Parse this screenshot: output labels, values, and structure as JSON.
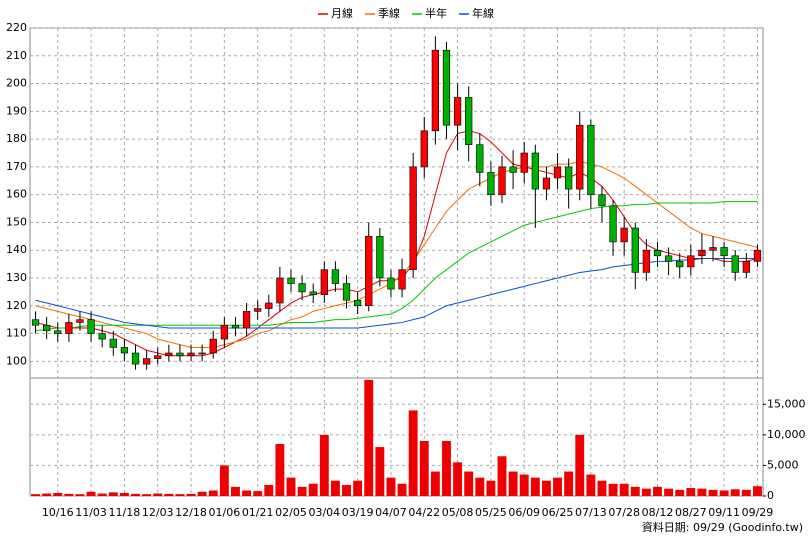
{
  "chart_data": {
    "type": "candlestick",
    "legend_position": "top",
    "grid": true,
    "up_color": "#ff0000",
    "down_color": "#00b000",
    "volume_color": "#ee0000",
    "footnote": "資料日期: 09/29 (Goodinfo.tw)",
    "categories": [
      null,
      null,
      "10/16",
      null,
      null,
      "11/03",
      null,
      null,
      "11/18",
      null,
      null,
      "12/03",
      null,
      null,
      "12/18",
      null,
      null,
      "01/06",
      null,
      null,
      "01/21",
      null,
      null,
      "02/05",
      null,
      null,
      "03/04",
      null,
      null,
      "03/19",
      null,
      null,
      "04/07",
      null,
      null,
      "04/22",
      null,
      null,
      "05/08",
      null,
      null,
      "05/25",
      null,
      null,
      "06/09",
      null,
      null,
      "06/25",
      null,
      null,
      "07/13",
      null,
      null,
      "07/28",
      null,
      null,
      "08/12",
      null,
      null,
      "08/27",
      null,
      null,
      "09/11",
      null,
      null,
      "09/29"
    ],
    "open": [
      115,
      113,
      111,
      110,
      114,
      115,
      110,
      108,
      105,
      103,
      99,
      101,
      102,
      103,
      102,
      103,
      103,
      108,
      113,
      112,
      118,
      119,
      121,
      130,
      128,
      125,
      124,
      133,
      128,
      122,
      120,
      145,
      130,
      126,
      133,
      170,
      183,
      212,
      185,
      195,
      178,
      168,
      160,
      170,
      168,
      175,
      162,
      166,
      170,
      162,
      185,
      160,
      156,
      143,
      148,
      132,
      140,
      138,
      136,
      134,
      138,
      140,
      141,
      138,
      132,
      136
    ],
    "high": [
      118,
      116,
      114,
      117,
      118,
      118,
      113,
      111,
      108,
      106,
      104,
      105,
      106,
      106,
      106,
      106,
      111,
      116,
      116,
      121,
      122,
      124,
      134,
      133,
      131,
      128,
      136,
      136,
      131,
      125,
      150,
      148,
      133,
      137,
      175,
      188,
      217,
      215,
      200,
      199,
      182,
      172,
      174,
      176,
      179,
      178,
      170,
      175,
      173,
      190,
      187,
      163,
      158,
      152,
      150,
      144,
      143,
      141,
      139,
      142,
      146,
      145,
      143,
      140,
      139,
      142
    ],
    "low": [
      110,
      108,
      107,
      107,
      111,
      107,
      105,
      102,
      100,
      97,
      97,
      99,
      100,
      100,
      100,
      100,
      101,
      105,
      109,
      109,
      115,
      116,
      118,
      125,
      122,
      121,
      121,
      125,
      119,
      117,
      118,
      127,
      123,
      123,
      130,
      166,
      178,
      180,
      176,
      172,
      163,
      156,
      157,
      162,
      164,
      148,
      158,
      162,
      155,
      158,
      155,
      150,
      138,
      138,
      126,
      129,
      134,
      131,
      130,
      131,
      135,
      136,
      134,
      129,
      130,
      134
    ],
    "close": [
      113,
      111,
      110,
      114,
      115,
      110,
      108,
      105,
      103,
      99,
      101,
      102,
      103,
      102,
      103,
      103,
      108,
      113,
      112,
      118,
      119,
      121,
      130,
      128,
      125,
      124,
      133,
      128,
      122,
      120,
      145,
      130,
      126,
      133,
      170,
      183,
      212,
      185,
      195,
      178,
      168,
      160,
      170,
      168,
      175,
      162,
      166,
      170,
      162,
      185,
      160,
      156,
      143,
      148,
      132,
      140,
      138,
      136,
      134,
      138,
      140,
      141,
      138,
      132,
      136,
      140
    ],
    "volume": [
      300,
      400,
      500,
      350,
      300,
      700,
      400,
      600,
      500,
      350,
      300,
      400,
      350,
      300,
      350,
      700,
      900,
      5000,
      1500,
      900,
      800,
      1800,
      8500,
      3000,
      1500,
      2000,
      10000,
      2500,
      1800,
      2500,
      19000,
      8000,
      3000,
      2000,
      14000,
      9000,
      4000,
      9000,
      5500,
      4000,
      3000,
      2500,
      6500,
      4000,
      3500,
      3000,
      2500,
      3000,
      4000,
      10000,
      3500,
      2500,
      2000,
      2000,
      1500,
      1200,
      1500,
      1200,
      1000,
      1300,
      1200,
      1000,
      900,
      1100,
      1000,
      1600
    ],
    "series": [
      {
        "name": "月線",
        "color": "#e00000",
        "values": [
          114,
          113,
          112,
          112,
          112,
          112,
          111,
          110,
          108,
          106,
          104,
          103,
          102,
          102,
          102,
          102,
          103,
          105,
          107,
          109,
          112,
          115,
          118,
          121,
          123,
          124,
          125,
          126,
          126,
          125,
          127,
          129,
          129,
          130,
          135,
          145,
          160,
          175,
          182,
          183,
          182,
          179,
          175,
          171,
          170,
          169,
          168,
          167,
          166,
          168,
          166,
          163,
          158,
          152,
          146,
          142,
          140,
          139,
          138,
          137,
          137,
          137,
          136,
          136,
          136,
          137
        ]
      },
      {
        "name": "季線",
        "color": "#f07000",
        "values": [
          120,
          119,
          118,
          117,
          116,
          115,
          114,
          113,
          112,
          111,
          110,
          108,
          107,
          106,
          105,
          105,
          105,
          106,
          107,
          108,
          110,
          111,
          113,
          115,
          116,
          118,
          119,
          120,
          121,
          122,
          124,
          126,
          128,
          131,
          136,
          142,
          148,
          154,
          158,
          162,
          164,
          166,
          168,
          169,
          170,
          170,
          170,
          171,
          171,
          172,
          171,
          170,
          168,
          166,
          163,
          160,
          157,
          154,
          151,
          148,
          146,
          145,
          144,
          143,
          142,
          141
        ]
      },
      {
        "name": "半年",
        "color": "#00c800",
        "values": [
          111,
          111.5,
          112,
          112,
          112.5,
          113,
          113,
          113,
          113,
          113,
          113,
          113,
          113,
          113,
          113,
          113,
          113,
          113,
          113,
          113,
          113,
          113,
          113.5,
          114,
          114,
          114,
          114.5,
          115,
          115,
          115.5,
          116,
          116.5,
          117,
          119,
          122,
          126,
          130,
          133,
          136,
          139,
          141,
          143,
          145,
          147,
          149,
          150,
          151,
          152,
          153,
          154,
          155,
          155.5,
          156,
          156,
          156.5,
          156.5,
          157,
          157,
          157,
          157,
          157,
          157,
          157.5,
          157.5,
          157.5,
          157.5
        ]
      },
      {
        "name": "年線",
        "color": "#0050e0",
        "values": [
          122,
          121,
          120,
          119,
          118,
          117,
          116,
          115,
          114,
          113.5,
          113,
          112.5,
          112,
          112,
          112,
          112,
          112,
          112,
          112,
          112,
          112,
          112,
          112,
          112,
          112,
          112,
          112,
          112,
          112,
          112,
          112.5,
          113,
          113.5,
          114,
          115,
          116,
          118,
          120,
          121,
          122,
          123,
          124,
          125,
          126,
          127,
          128,
          129,
          130,
          131,
          132,
          132.5,
          133,
          134,
          134.5,
          135,
          135.5,
          136,
          136,
          136.5,
          136.5,
          137,
          137,
          137,
          137,
          137,
          137
        ]
      }
    ],
    "ylim": [
      94,
      220
    ],
    "yticks": [
      100,
      110,
      120,
      130,
      140,
      150,
      160,
      170,
      180,
      190,
      200,
      210,
      220
    ],
    "y2lim": [
      0,
      19300
    ],
    "y2ticks": [
      0,
      {
        "value": 5000,
        "label": "5,000"
      },
      {
        "value": 10000,
        "label": "10,000"
      },
      {
        "value": 15000,
        "label": "15,000"
      }
    ]
  }
}
